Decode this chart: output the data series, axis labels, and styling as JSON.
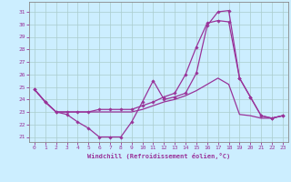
{
  "xlabel": "Windchill (Refroidissement éolien,°C)",
  "background_color": "#cceeff",
  "grid_color": "#aacccc",
  "line_color": "#993399",
  "xlim": [
    -0.5,
    23.5
  ],
  "ylim": [
    20.6,
    31.8
  ],
  "yticks": [
    21,
    22,
    23,
    24,
    25,
    26,
    27,
    28,
    29,
    30,
    31
  ],
  "xticks": [
    0,
    1,
    2,
    3,
    4,
    5,
    6,
    7,
    8,
    9,
    10,
    11,
    12,
    13,
    14,
    15,
    16,
    17,
    18,
    19,
    20,
    21,
    22,
    23
  ],
  "series": [
    {
      "x": [
        0,
        1,
        2,
        3,
        4,
        5,
        6,
        7,
        8,
        9,
        10,
        11,
        12,
        13,
        14,
        15,
        16,
        17,
        18,
        19,
        20,
        21,
        22,
        23
      ],
      "y": [
        24.8,
        23.8,
        23.0,
        22.8,
        22.2,
        21.7,
        21.0,
        21.0,
        21.0,
        22.2,
        23.8,
        25.5,
        24.0,
        24.2,
        24.5,
        26.1,
        29.9,
        31.0,
        31.1,
        25.7,
        24.2,
        22.7,
        22.5,
        22.7
      ],
      "marker": true
    },
    {
      "x": [
        0,
        1,
        2,
        3,
        4,
        5,
        6,
        7,
        8,
        9,
        10,
        11,
        12,
        13,
        14,
        15,
        16,
        17,
        18,
        19,
        20,
        21,
        22,
        23
      ],
      "y": [
        24.8,
        23.8,
        23.0,
        23.0,
        23.0,
        23.0,
        23.0,
        23.0,
        23.0,
        23.0,
        23.2,
        23.5,
        23.8,
        24.0,
        24.3,
        24.7,
        25.2,
        25.7,
        25.2,
        22.8,
        22.7,
        22.5,
        22.5,
        22.7
      ],
      "marker": false
    },
    {
      "x": [
        0,
        1,
        2,
        3,
        4,
        5,
        6,
        7,
        8,
        9,
        10,
        11,
        12,
        13,
        14,
        15,
        16,
        17,
        18,
        19,
        20,
        21,
        22,
        23
      ],
      "y": [
        24.8,
        23.8,
        23.0,
        23.0,
        23.0,
        23.0,
        23.2,
        23.2,
        23.2,
        23.2,
        23.5,
        23.8,
        24.2,
        24.5,
        26.0,
        28.2,
        30.1,
        30.3,
        30.2,
        25.7,
        24.2,
        22.7,
        22.5,
        22.7
      ],
      "marker": true
    }
  ]
}
